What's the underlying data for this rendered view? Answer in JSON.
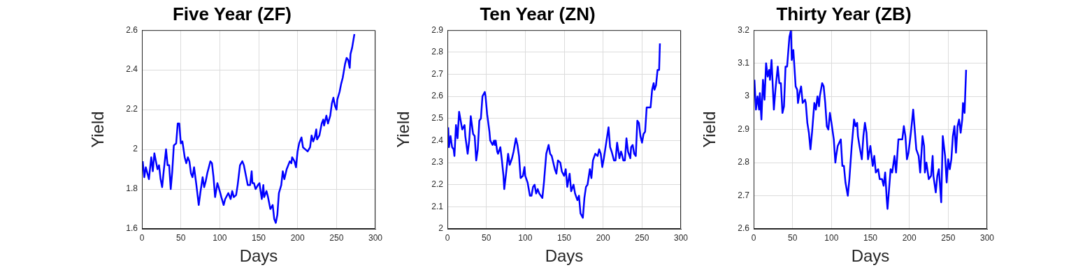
{
  "chart_data": [
    {
      "type": "line",
      "title": "Five Year (ZF)",
      "xlabel": "Days",
      "ylabel": "Yield",
      "xlim": [
        0,
        300
      ],
      "xticks": [
        0,
        50,
        100,
        150,
        200,
        250,
        300
      ],
      "ylim": [
        1.6,
        2.6
      ],
      "yticks": [
        1.6,
        1.8,
        2,
        2.2,
        2.4,
        2.6
      ],
      "grid": true,
      "series": [
        {
          "color": "#0000ff",
          "x": [
            1,
            3,
            5,
            7,
            9,
            12,
            14,
            16,
            18,
            20,
            22,
            24,
            26,
            28,
            31,
            33,
            35,
            37,
            39,
            41,
            44,
            46,
            48,
            50,
            52,
            55,
            57,
            59,
            61,
            63,
            65,
            67,
            70,
            73,
            75,
            78,
            80,
            82,
            84,
            88,
            90,
            92,
            94,
            97,
            100,
            102,
            105,
            107,
            111,
            114,
            116,
            118,
            121,
            123,
            126,
            129,
            131,
            133,
            136,
            139,
            141,
            142,
            144,
            146,
            149,
            151,
            154,
            156,
            157,
            160,
            162,
            165,
            168,
            170,
            172,
            174,
            176,
            179,
            181,
            183,
            186,
            188,
            190,
            192,
            193,
            196,
            198,
            200,
            202,
            205,
            207,
            210,
            213,
            216,
            218,
            220,
            222,
            224,
            225,
            228,
            231,
            233,
            234,
            237,
            239,
            242,
            244,
            246,
            248,
            250,
            251,
            254,
            256,
            258,
            261,
            263,
            265,
            267,
            268,
            270,
            273
          ],
          "values": [
            1.94,
            1.86,
            1.91,
            1.88,
            1.85,
            1.96,
            1.89,
            1.98,
            1.94,
            1.9,
            1.92,
            1.85,
            1.81,
            1.89,
            2.0,
            1.92,
            1.92,
            1.8,
            1.89,
            2.02,
            2.03,
            2.13,
            2.13,
            2.03,
            2.04,
            1.96,
            1.93,
            1.96,
            1.94,
            1.88,
            1.86,
            1.91,
            1.82,
            1.72,
            1.78,
            1.86,
            1.81,
            1.84,
            1.88,
            1.94,
            1.93,
            1.86,
            1.76,
            1.83,
            1.79,
            1.76,
            1.72,
            1.75,
            1.78,
            1.75,
            1.79,
            1.76,
            1.77,
            1.82,
            1.92,
            1.94,
            1.92,
            1.88,
            1.82,
            1.82,
            1.89,
            1.83,
            1.83,
            1.8,
            1.82,
            1.83,
            1.75,
            1.82,
            1.76,
            1.79,
            1.76,
            1.7,
            1.72,
            1.65,
            1.63,
            1.67,
            1.78,
            1.82,
            1.89,
            1.85,
            1.9,
            1.92,
            1.94,
            1.93,
            1.96,
            1.94,
            1.91,
            1.99,
            2.03,
            2.06,
            2.01,
            2.0,
            1.99,
            2.01,
            2.07,
            2.04,
            2.06,
            2.1,
            2.05,
            2.07,
            2.13,
            2.15,
            2.12,
            2.17,
            2.13,
            2.17,
            2.23,
            2.26,
            2.22,
            2.2,
            2.25,
            2.29,
            2.33,
            2.36,
            2.43,
            2.46,
            2.45,
            2.41,
            2.48,
            2.51,
            2.58
          ]
        }
      ]
    },
    {
      "type": "line",
      "title": "Ten Year (ZN)",
      "xlabel": "Days",
      "ylabel": "Yield",
      "xlim": [
        0,
        300
      ],
      "xticks": [
        0,
        50,
        100,
        150,
        200,
        250,
        300
      ],
      "ylim": [
        2,
        2.9
      ],
      "yticks": [
        2,
        2.1,
        2.2,
        2.3,
        2.4,
        2.5,
        2.6,
        2.7,
        2.8,
        2.9
      ],
      "grid": true,
      "series": [
        {
          "color": "#0000ff",
          "x": [
            1,
            2,
            4,
            6,
            8,
            9,
            11,
            13,
            15,
            17,
            19,
            22,
            23,
            26,
            28,
            30,
            33,
            35,
            37,
            39,
            41,
            43,
            45,
            48,
            49,
            51,
            54,
            55,
            58,
            60,
            61,
            62,
            64,
            65,
            68,
            70,
            72,
            73,
            75,
            78,
            80,
            83,
            85,
            88,
            90,
            92,
            94,
            97,
            99,
            100,
            103,
            106,
            108,
            110,
            112,
            114,
            116,
            118,
            122,
            124,
            127,
            130,
            132,
            134,
            138,
            140,
            142,
            145,
            147,
            150,
            152,
            154,
            157,
            159,
            162,
            164,
            167,
            169,
            171,
            174,
            176,
            178,
            180,
            183,
            185,
            187,
            190,
            193,
            195,
            197,
            199,
            201,
            204,
            207,
            209,
            211,
            214,
            216,
            218,
            221,
            223,
            224,
            226,
            228,
            230,
            232,
            235,
            236,
            238,
            240,
            242,
            244,
            246,
            248,
            250,
            252,
            254,
            256,
            258,
            261,
            263,
            265,
            266,
            268,
            270,
            272,
            273
          ],
          "values": [
            2.46,
            2.37,
            2.42,
            2.37,
            2.36,
            2.33,
            2.47,
            2.41,
            2.53,
            2.49,
            2.45,
            2.47,
            2.42,
            2.34,
            2.4,
            2.51,
            2.43,
            2.42,
            2.31,
            2.36,
            2.49,
            2.5,
            2.6,
            2.62,
            2.6,
            2.52,
            2.44,
            2.4,
            2.38,
            2.4,
            2.38,
            2.4,
            2.35,
            2.34,
            2.37,
            2.31,
            2.24,
            2.18,
            2.24,
            2.34,
            2.29,
            2.32,
            2.35,
            2.41,
            2.38,
            2.33,
            2.23,
            2.24,
            2.28,
            2.24,
            2.21,
            2.15,
            2.15,
            2.19,
            2.2,
            2.16,
            2.18,
            2.16,
            2.14,
            2.21,
            2.34,
            2.38,
            2.34,
            2.33,
            2.27,
            2.25,
            2.31,
            2.3,
            2.26,
            2.24,
            2.27,
            2.19,
            2.25,
            2.17,
            2.2,
            2.16,
            2.13,
            2.15,
            2.07,
            2.05,
            2.14,
            2.19,
            2.2,
            2.27,
            2.23,
            2.31,
            2.34,
            2.33,
            2.36,
            2.34,
            2.28,
            2.32,
            2.39,
            2.46,
            2.37,
            2.35,
            2.31,
            2.31,
            2.39,
            2.32,
            2.35,
            2.34,
            2.31,
            2.31,
            2.41,
            2.35,
            2.32,
            2.37,
            2.38,
            2.34,
            2.33,
            2.49,
            2.48,
            2.42,
            2.39,
            2.43,
            2.44,
            2.55,
            2.55,
            2.55,
            2.63,
            2.66,
            2.63,
            2.65,
            2.72,
            2.72,
            2.84
          ]
        }
      ]
    },
    {
      "type": "line",
      "title": "Thirty Year (ZB)",
      "xlabel": "Days",
      "ylabel": "Yield",
      "xlim": [
        0,
        300
      ],
      "xticks": [
        0,
        50,
        100,
        150,
        200,
        250,
        300
      ],
      "ylim": [
        2.6,
        3.2
      ],
      "yticks": [
        2.6,
        2.7,
        2.8,
        2.9,
        3,
        3.1,
        3.2
      ],
      "grid": true,
      "series": [
        {
          "color": "#0000ff",
          "x": [
            1,
            3,
            5,
            7,
            8,
            10,
            12,
            14,
            16,
            18,
            20,
            21,
            23,
            26,
            28,
            31,
            33,
            35,
            37,
            39,
            41,
            43,
            46,
            48,
            49,
            51,
            54,
            56,
            57,
            59,
            61,
            63,
            66,
            67,
            69,
            71,
            73,
            75,
            78,
            80,
            82,
            84,
            85,
            88,
            90,
            92,
            94,
            96,
            98,
            100,
            103,
            105,
            106,
            108,
            112,
            114,
            116,
            118,
            121,
            123,
            126,
            129,
            131,
            133,
            134,
            136,
            139,
            141,
            143,
            145,
            147,
            150,
            153,
            155,
            157,
            160,
            162,
            165,
            167,
            169,
            171,
            172,
            174,
            176,
            178,
            181,
            183,
            186,
            189,
            191,
            193,
            195,
            197,
            199,
            202,
            205,
            207,
            209,
            212,
            214,
            217,
            219,
            220,
            222,
            225,
            228,
            230,
            231,
            234,
            236,
            238,
            241,
            243,
            246,
            248,
            250,
            252,
            254,
            256,
            258,
            260,
            262,
            264,
            266,
            268,
            269,
            271,
            273
          ],
          "values": [
            3.05,
            2.96,
            3.0,
            2.96,
            3.01,
            2.93,
            3.05,
            2.99,
            3.1,
            3.06,
            3.08,
            3.05,
            3.11,
            2.96,
            3.02,
            3.09,
            3.04,
            3.04,
            2.95,
            2.97,
            3.09,
            3.09,
            3.18,
            3.2,
            3.11,
            3.14,
            3.03,
            3.02,
            2.98,
            3.01,
            3.03,
            2.98,
            2.99,
            2.98,
            2.92,
            2.89,
            2.84,
            2.89,
            2.98,
            2.96,
            3.0,
            2.97,
            3.0,
            3.04,
            3.03,
            2.98,
            2.91,
            2.9,
            2.95,
            2.92,
            2.87,
            2.8,
            2.82,
            2.85,
            2.87,
            2.79,
            2.79,
            2.74,
            2.7,
            2.75,
            2.85,
            2.93,
            2.91,
            2.92,
            2.88,
            2.85,
            2.81,
            2.88,
            2.92,
            2.89,
            2.81,
            2.85,
            2.79,
            2.82,
            2.77,
            2.78,
            2.75,
            2.75,
            2.73,
            2.77,
            2.69,
            2.66,
            2.72,
            2.78,
            2.77,
            2.82,
            2.77,
            2.87,
            2.87,
            2.87,
            2.91,
            2.88,
            2.81,
            2.83,
            2.89,
            2.96,
            2.9,
            2.84,
            2.82,
            2.77,
            2.88,
            2.85,
            2.77,
            2.8,
            2.75,
            2.76,
            2.82,
            2.76,
            2.71,
            2.76,
            2.78,
            2.68,
            2.88,
            2.82,
            2.74,
            2.81,
            2.78,
            2.81,
            2.88,
            2.91,
            2.83,
            2.91,
            2.93,
            2.89,
            2.93,
            2.98,
            2.95,
            3.08
          ]
        }
      ]
    }
  ]
}
